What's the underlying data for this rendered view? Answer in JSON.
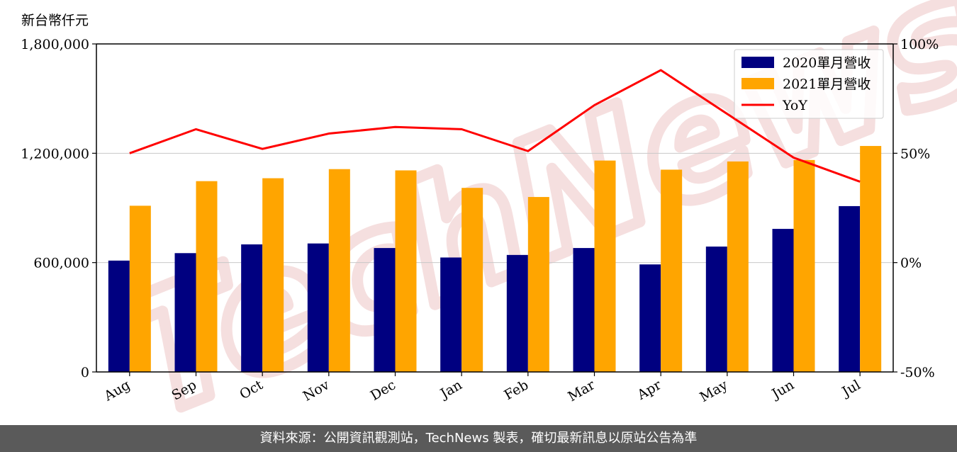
{
  "unit_label": "新台幣仟元",
  "watermark_text": "TechNews",
  "footer_text": "資料來源：公開資訊觀測站，TechNews 製表，確切最新訊息以原站公告為準",
  "chart_data": {
    "type": "bar",
    "categories": [
      "Aug",
      "Sep",
      "Oct",
      "Nov",
      "Dec",
      "Jan",
      "Feb",
      "Mar",
      "Apr",
      "May",
      "Jun",
      "Jul"
    ],
    "series": [
      {
        "name": "2020單月營收",
        "color": "#000080",
        "values": [
          611000,
          652000,
          700000,
          705000,
          680000,
          628000,
          642000,
          680000,
          590000,
          688000,
          785000,
          910000
        ]
      },
      {
        "name": "2021單月營收",
        "color": "#ffa500",
        "values": [
          912000,
          1047000,
          1063000,
          1113000,
          1106000,
          1010000,
          960000,
          1160000,
          1110000,
          1155000,
          1163000,
          1240000
        ]
      }
    ],
    "line_series": {
      "name": "YoY",
      "color": "#ff0000",
      "values": [
        50,
        61,
        52,
        59,
        62,
        61,
        51,
        72,
        88,
        68,
        48,
        37
      ]
    },
    "yleft_ticks": [
      {
        "value": 0,
        "label": "0"
      },
      {
        "value": 600000,
        "label": "600,000"
      },
      {
        "value": 1200000,
        "label": "1,200,000"
      },
      {
        "value": 1800000,
        "label": "1,800,000"
      }
    ],
    "yright_ticks": [
      {
        "value": -50,
        "label": "-50%"
      },
      {
        "value": 0,
        "label": "0%"
      },
      {
        "value": 50,
        "label": "50%"
      },
      {
        "value": 100,
        "label": "100%"
      }
    ],
    "yleft_lim": [
      0,
      1800000
    ],
    "yright_lim": [
      -50,
      100
    ],
    "grid": "horizontal",
    "legend_position": "top-right"
  }
}
